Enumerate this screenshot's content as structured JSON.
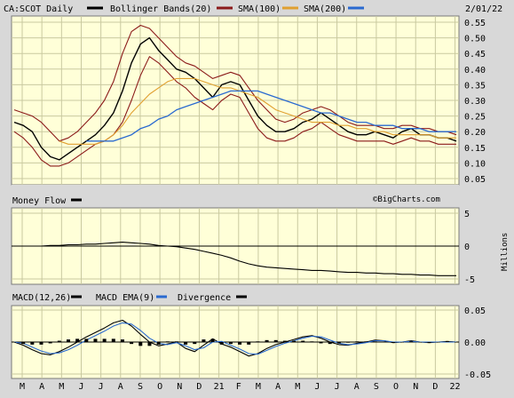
{
  "header": {
    "symbol_label": "CA:SCOT Daily",
    "legend": [
      {
        "label": "Bollinger Bands(20)",
        "color": "#8b1a1a"
      },
      {
        "label": "SMA(100)",
        "color": "#e0a030"
      },
      {
        "label": "SMA(200)",
        "color": "#2a6ad0"
      }
    ],
    "date": "2/01/22"
  },
  "watermark": "©BigCharts.com",
  "chart_data": [
    {
      "type": "line",
      "panel": "price",
      "x_axis_labels": [
        "M",
        "A",
        "M",
        "J",
        "J",
        "A",
        "S",
        "O",
        "N",
        "D",
        "21",
        "F",
        "M",
        "A",
        "M",
        "J",
        "J",
        "A",
        "S",
        "O",
        "N",
        "D",
        "22"
      ],
      "y_ticks": [
        "0.55",
        "0.50",
        "0.45",
        "0.40",
        "0.35",
        "0.30",
        "0.25",
        "0.20",
        "0.15",
        "0.10",
        "0.05"
      ],
      "ylim": [
        0.05,
        0.55
      ],
      "series": [
        {
          "name": "CA:SCOT Daily",
          "color": "#000000",
          "values": [
            0.23,
            0.22,
            0.2,
            0.15,
            0.12,
            0.11,
            0.13,
            0.15,
            0.17,
            0.19,
            0.22,
            0.26,
            0.33,
            0.42,
            0.48,
            0.5,
            0.46,
            0.43,
            0.4,
            0.39,
            0.37,
            0.34,
            0.31,
            0.35,
            0.36,
            0.35,
            0.3,
            0.25,
            0.22,
            0.2,
            0.2,
            0.21,
            0.23,
            0.24,
            0.26,
            0.24,
            0.22,
            0.2,
            0.19,
            0.19,
            0.2,
            0.19,
            0.18,
            0.2,
            0.21,
            0.19,
            0.19,
            0.18,
            0.18,
            0.17
          ]
        },
        {
          "name": "Bollinger Bands(20)",
          "color": "#8b1a1a",
          "values": [
            0.27,
            0.26,
            0.25,
            0.23,
            0.2,
            0.17,
            0.18,
            0.2,
            0.23,
            0.26,
            0.3,
            0.36,
            0.45,
            0.52,
            0.54,
            0.53,
            0.5,
            0.47,
            0.44,
            0.42,
            0.41,
            0.39,
            0.37,
            0.38,
            0.39,
            0.38,
            0.34,
            0.3,
            0.27,
            0.24,
            0.23,
            0.24,
            0.26,
            0.27,
            0.28,
            0.27,
            0.25,
            0.23,
            0.22,
            0.22,
            0.22,
            0.21,
            0.21,
            0.22,
            0.22,
            0.21,
            0.21,
            0.2,
            0.2,
            0.19
          ]
        },
        {
          "name": "Bollinger Bands(20) lower",
          "color": "#8b1a1a",
          "values": [
            0.2,
            0.18,
            0.15,
            0.11,
            0.09,
            0.09,
            0.1,
            0.12,
            0.14,
            0.16,
            0.17,
            0.19,
            0.23,
            0.3,
            0.38,
            0.44,
            0.42,
            0.39,
            0.36,
            0.34,
            0.31,
            0.29,
            0.27,
            0.3,
            0.32,
            0.31,
            0.26,
            0.21,
            0.18,
            0.17,
            0.17,
            0.18,
            0.2,
            0.21,
            0.23,
            0.21,
            0.19,
            0.18,
            0.17,
            0.17,
            0.17,
            0.17,
            0.16,
            0.17,
            0.18,
            0.17,
            0.17,
            0.16,
            0.16,
            0.16
          ]
        },
        {
          "name": "SMA(100)",
          "color": "#e0a030",
          "values": [
            null,
            null,
            null,
            null,
            null,
            0.17,
            0.16,
            0.16,
            0.16,
            0.16,
            0.17,
            0.19,
            0.22,
            0.26,
            0.29,
            0.32,
            0.34,
            0.36,
            0.37,
            0.37,
            0.37,
            0.36,
            0.35,
            0.34,
            0.34,
            0.33,
            0.32,
            0.31,
            0.29,
            0.27,
            0.26,
            0.25,
            0.24,
            0.23,
            0.23,
            0.23,
            0.22,
            0.22,
            0.21,
            0.21,
            0.2,
            0.2,
            0.19,
            0.19,
            0.19,
            0.19,
            0.19,
            0.18,
            0.18,
            0.18
          ]
        },
        {
          "name": "SMA(200)",
          "color": "#2a6ad0",
          "values": [
            null,
            null,
            null,
            null,
            null,
            null,
            null,
            null,
            0.17,
            0.17,
            0.17,
            0.17,
            0.18,
            0.19,
            0.21,
            0.22,
            0.24,
            0.25,
            0.27,
            0.28,
            0.29,
            0.3,
            0.31,
            0.32,
            0.33,
            0.33,
            0.33,
            0.33,
            0.32,
            0.31,
            0.3,
            0.29,
            0.28,
            0.27,
            0.26,
            0.26,
            0.25,
            0.24,
            0.23,
            0.23,
            0.22,
            0.22,
            0.22,
            0.21,
            0.21,
            0.21,
            0.2,
            0.2,
            0.2,
            0.2
          ]
        }
      ]
    },
    {
      "type": "line",
      "panel": "money_flow",
      "title": "Money Flow",
      "ylabel": "Millions",
      "y_ticks": [
        "5",
        "0",
        "-5"
      ],
      "ylim": [
        -5,
        5
      ],
      "series": [
        {
          "name": "Money Flow",
          "color": "#000000",
          "values": [
            0,
            0,
            0,
            0,
            0.1,
            0.1,
            0.2,
            0.2,
            0.3,
            0.3,
            0.4,
            0.5,
            0.6,
            0.5,
            0.4,
            0.3,
            0.1,
            0,
            -0.1,
            -0.3,
            -0.5,
            -0.8,
            -1.1,
            -1.4,
            -1.8,
            -2.3,
            -2.7,
            -3.0,
            -3.2,
            -3.3,
            -3.4,
            -3.5,
            -3.6,
            -3.7,
            -3.7,
            -3.8,
            -3.9,
            -4.0,
            -4.0,
            -4.1,
            -4.1,
            -4.2,
            -4.2,
            -4.3,
            -4.3,
            -4.4,
            -4.4,
            -4.5,
            -4.5,
            -4.5
          ]
        }
      ]
    },
    {
      "type": "line",
      "panel": "macd",
      "title": "MACD(12,26)",
      "y_ticks": [
        "0.05",
        "0.00",
        "-0.05"
      ],
      "ylim": [
        -0.05,
        0.05
      ],
      "series": [
        {
          "name": "MACD(12,26)",
          "color": "#000000",
          "values": [
            0.0,
            -0.005,
            -0.012,
            -0.018,
            -0.02,
            -0.015,
            -0.008,
            0.0,
            0.008,
            0.015,
            0.022,
            0.03,
            0.034,
            0.025,
            0.012,
            0.0,
            -0.006,
            -0.003,
            0.0,
            -0.01,
            -0.015,
            -0.005,
            0.005,
            -0.003,
            -0.008,
            -0.015,
            -0.022,
            -0.018,
            -0.01,
            -0.004,
            0.0,
            0.004,
            0.008,
            0.01,
            0.006,
            0.0,
            -0.004,
            -0.005,
            -0.002,
            0.0,
            0.003,
            0.002,
            -0.001,
            0.0,
            0.002,
            0.0,
            -0.001,
            0.0,
            0.001,
            0.0
          ]
        },
        {
          "name": "MACD EMA(9)",
          "color": "#2a6ad0",
          "values": [
            0.0,
            -0.002,
            -0.008,
            -0.014,
            -0.018,
            -0.017,
            -0.012,
            -0.005,
            0.003,
            0.01,
            0.017,
            0.025,
            0.03,
            0.028,
            0.018,
            0.006,
            -0.002,
            -0.004,
            -0.001,
            -0.006,
            -0.012,
            -0.009,
            0.0,
            0.001,
            -0.005,
            -0.011,
            -0.018,
            -0.019,
            -0.013,
            -0.007,
            -0.002,
            0.002,
            0.006,
            0.009,
            0.008,
            0.003,
            -0.002,
            -0.004,
            -0.003,
            -0.001,
            0.002,
            0.002,
            0.0,
            0.0,
            0.001,
            0.0,
            0.0,
            0.0,
            0.0,
            0.0
          ]
        },
        {
          "name": "Divergence",
          "color": "#000000",
          "values": [
            0.0,
            -0.003,
            -0.004,
            -0.004,
            -0.002,
            0.002,
            0.004,
            0.005,
            0.005,
            0.005,
            0.005,
            0.005,
            0.004,
            -0.003,
            -0.006,
            -0.006,
            -0.004,
            0.001,
            0.001,
            -0.004,
            -0.003,
            0.004,
            0.005,
            -0.004,
            -0.003,
            -0.004,
            -0.004,
            0.001,
            0.003,
            0.003,
            0.002,
            0.002,
            0.002,
            0.001,
            -0.002,
            -0.003,
            -0.002,
            -0.001,
            0.001,
            0.001,
            0.001,
            0.0,
            -0.001,
            0.0,
            0.001,
            0.0,
            -0.001,
            0.0,
            0.001,
            0.0
          ]
        }
      ]
    }
  ]
}
